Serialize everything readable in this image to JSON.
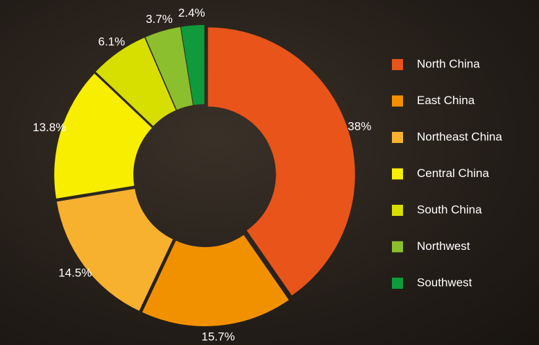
{
  "chart_data": {
    "type": "donut",
    "categories": [
      "North China",
      "East China",
      "Northeast China",
      "Central China",
      "South China",
      "Northwest",
      "Southwest"
    ],
    "values": [
      38,
      15.7,
      14.5,
      13.8,
      6.1,
      3.7,
      2.4
    ],
    "value_labels": [
      "38%",
      "15.7%",
      "14.5%",
      "13.8%",
      "6.1%",
      "3.7%",
      "2.4%"
    ],
    "colors": [
      "#e8541a",
      "#f29100",
      "#f7b12f",
      "#f8ee00",
      "#d6df00",
      "#8bbf2e",
      "#0f9a3c"
    ],
    "legend": "right"
  }
}
